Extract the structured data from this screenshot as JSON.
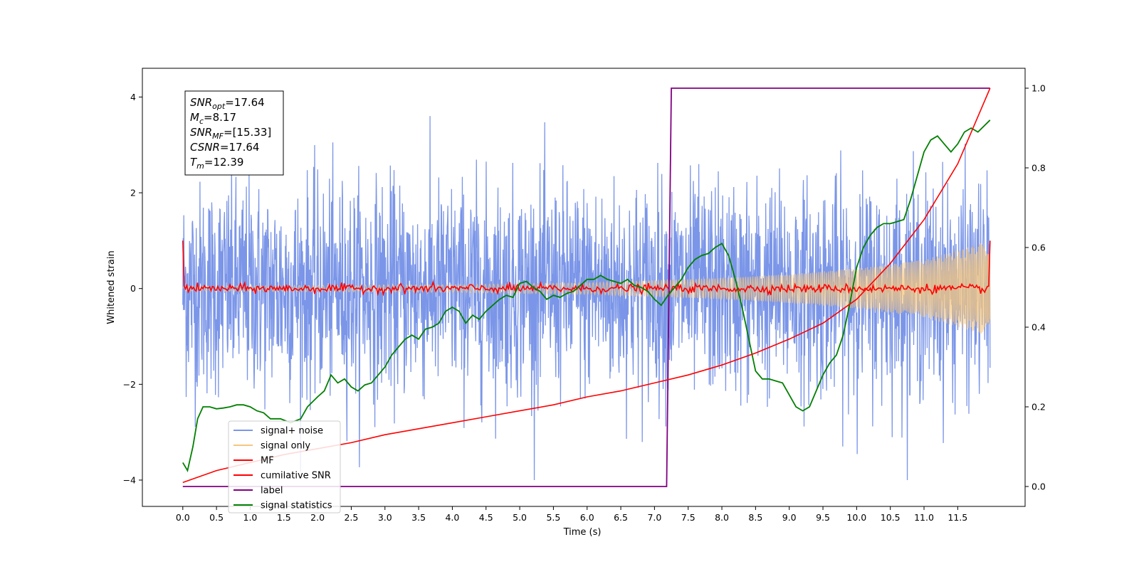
{
  "chart_data": {
    "type": "line",
    "xlabel": "Time (s)",
    "ylabel": "Whitened strain",
    "xlim": [
      -0.6,
      12.5
    ],
    "ylim": [
      -4.55,
      4.6
    ],
    "y2lim": [
      -0.05,
      1.05
    ],
    "x_ticks": [
      0.0,
      0.5,
      1.0,
      1.5,
      2.0,
      2.5,
      3.0,
      3.5,
      4.0,
      4.5,
      5.0,
      5.5,
      6.0,
      6.5,
      7.0,
      7.5,
      8.0,
      8.5,
      9.0,
      9.5,
      10.0,
      10.5,
      11.0,
      11.5
    ],
    "y_ticks": [
      -4,
      -2,
      0,
      2,
      4
    ],
    "y2_ticks": [
      0.0,
      0.2,
      0.4,
      0.6,
      0.8,
      1.0
    ],
    "grid": false,
    "legend_position": "lower-left",
    "legend": [
      "signal+ noise",
      "signal only",
      "MF",
      "cumilative SNR",
      "label",
      "signal statistics"
    ],
    "stats_box": [
      {
        "main": "SNR",
        "sub": "opt",
        "value": "=17.64"
      },
      {
        "main": "M",
        "sub": "c",
        "value": "=8.17"
      },
      {
        "main": "SNR",
        "sub": "MF",
        "value": "=[15.33]"
      },
      {
        "main": "CSNR",
        "sub": "",
        "value": "=17.64"
      },
      {
        "main": "T",
        "sub": "m",
        "value": "=12.39"
      }
    ],
    "series": [
      {
        "name": "signal+ noise",
        "axis": "left",
        "color": "#7b96e8",
        "description": "whitened noise plus signal, samples span roughly -3.5 to 3.5 with peaks to 4.0",
        "t_range": [
          0.0,
          11.98
        ],
        "envelope_std": 1.1,
        "max_abs": 4.0
      },
      {
        "name": "signal only",
        "axis": "left",
        "color": "#f5c77e",
        "description": "chirp whose amplitude grows from ~0.05 at t=0 to ~1.0 at t=11.98",
        "t_range": [
          0.0,
          11.98
        ],
        "amplitude": [
          [
            0.0,
            0.05
          ],
          [
            4.0,
            0.08
          ],
          [
            6.0,
            0.12
          ],
          [
            7.0,
            0.17
          ],
          [
            8.0,
            0.22
          ],
          [
            9.0,
            0.3
          ],
          [
            10.0,
            0.42
          ],
          [
            11.0,
            0.6
          ],
          [
            11.98,
            1.0
          ]
        ]
      },
      {
        "name": "MF",
        "axis": "left",
        "color": "#ff0000",
        "description": "matched filter output, ~1.0 at both ends, fluctuating around 0 with amplitude ~0.1",
        "t_range": [
          0.0,
          11.98
        ],
        "end_values": [
          1.0,
          1.0
        ],
        "fluctuation": 0.1
      },
      {
        "name": "cumilative SNR",
        "axis": "right",
        "color": "#ff0000",
        "x": [
          0.0,
          0.5,
          1.0,
          1.5,
          2.0,
          2.5,
          3.0,
          3.5,
          4.0,
          4.5,
          5.0,
          5.5,
          6.0,
          6.5,
          7.0,
          7.5,
          8.0,
          8.5,
          9.0,
          9.5,
          10.0,
          10.5,
          11.0,
          11.5,
          11.98
        ],
        "values": [
          0.01,
          0.04,
          0.06,
          0.08,
          0.095,
          0.11,
          0.13,
          0.145,
          0.16,
          0.175,
          0.19,
          0.205,
          0.225,
          0.24,
          0.26,
          0.28,
          0.305,
          0.335,
          0.37,
          0.41,
          0.47,
          0.56,
          0.67,
          0.81,
          1.0
        ]
      },
      {
        "name": "label",
        "axis": "right",
        "color": "#800080",
        "x": [
          0.0,
          7.18,
          7.25,
          11.98
        ],
        "values": [
          0.0,
          0.0,
          1.0,
          1.0
        ]
      },
      {
        "name": "signal statistics",
        "axis": "right",
        "color": "#008000",
        "x": [
          0.0,
          0.07,
          0.15,
          0.22,
          0.3,
          0.4,
          0.5,
          0.6,
          0.7,
          0.8,
          0.9,
          1.0,
          1.1,
          1.2,
          1.3,
          1.45,
          1.6,
          1.75,
          1.85,
          2.0,
          2.1,
          2.2,
          2.3,
          2.4,
          2.5,
          2.6,
          2.7,
          2.8,
          2.9,
          3.0,
          3.1,
          3.2,
          3.3,
          3.4,
          3.5,
          3.6,
          3.7,
          3.8,
          3.9,
          4.0,
          4.1,
          4.2,
          4.3,
          4.4,
          4.5,
          4.6,
          4.7,
          4.8,
          4.9,
          5.0,
          5.1,
          5.2,
          5.3,
          5.4,
          5.5,
          5.6,
          5.7,
          5.8,
          5.9,
          6.0,
          6.1,
          6.2,
          6.3,
          6.4,
          6.5,
          6.6,
          6.7,
          6.8,
          6.9,
          7.0,
          7.1,
          7.2,
          7.3,
          7.4,
          7.5,
          7.6,
          7.7,
          7.8,
          7.9,
          8.0,
          8.1,
          8.2,
          8.3,
          8.4,
          8.5,
          8.6,
          8.7,
          8.8,
          8.9,
          9.0,
          9.1,
          9.2,
          9.3,
          9.4,
          9.5,
          9.6,
          9.7,
          9.8,
          9.9,
          10.0,
          10.1,
          10.2,
          10.3,
          10.4,
          10.5,
          10.6,
          10.7,
          10.8,
          10.9,
          11.0,
          11.1,
          11.2,
          11.3,
          11.4,
          11.5,
          11.6,
          11.7,
          11.8,
          11.98
        ],
        "values": [
          0.06,
          0.04,
          0.1,
          0.17,
          0.2,
          0.2,
          0.195,
          0.197,
          0.2,
          0.205,
          0.205,
          0.2,
          0.19,
          0.185,
          0.17,
          0.17,
          0.16,
          0.17,
          0.2,
          0.225,
          0.24,
          0.28,
          0.26,
          0.27,
          0.25,
          0.24,
          0.255,
          0.26,
          0.28,
          0.3,
          0.33,
          0.35,
          0.37,
          0.38,
          0.37,
          0.395,
          0.4,
          0.41,
          0.44,
          0.45,
          0.44,
          0.41,
          0.43,
          0.42,
          0.44,
          0.455,
          0.47,
          0.48,
          0.475,
          0.51,
          0.515,
          0.5,
          0.49,
          0.47,
          0.48,
          0.475,
          0.485,
          0.49,
          0.505,
          0.52,
          0.52,
          0.53,
          0.52,
          0.515,
          0.51,
          0.52,
          0.505,
          0.5,
          0.49,
          0.47,
          0.455,
          0.48,
          0.5,
          0.52,
          0.55,
          0.57,
          0.58,
          0.585,
          0.6,
          0.61,
          0.58,
          0.52,
          0.45,
          0.37,
          0.29,
          0.27,
          0.27,
          0.265,
          0.26,
          0.23,
          0.2,
          0.19,
          0.2,
          0.24,
          0.28,
          0.31,
          0.33,
          0.38,
          0.46,
          0.55,
          0.6,
          0.63,
          0.65,
          0.66,
          0.66,
          0.665,
          0.67,
          0.72,
          0.78,
          0.84,
          0.87,
          0.88,
          0.86,
          0.84,
          0.86,
          0.89,
          0.9,
          0.89,
          0.92
        ]
      }
    ]
  }
}
